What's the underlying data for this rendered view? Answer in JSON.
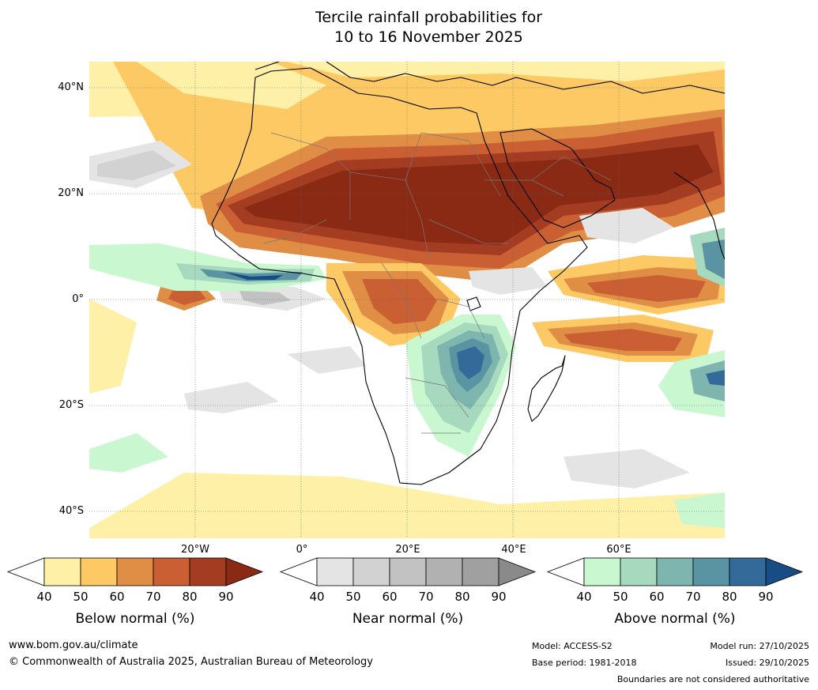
{
  "title": {
    "line1": "Tercile rainfall probabilities for",
    "line2": "10 to 16 November 2025"
  },
  "axes": {
    "lat_labels": [
      "40°N",
      "20°N",
      "0°",
      "20°S",
      "40°S"
    ],
    "lon_labels": [
      "20°W",
      "0°",
      "20°E",
      "40°E",
      "60°E"
    ]
  },
  "colorbars": [
    {
      "label": "Below normal (%)",
      "ticks": [
        "40",
        "50",
        "60",
        "70",
        "80",
        "90"
      ],
      "colors": [
        "#fff0a8",
        "#fdc965",
        "#e08e45",
        "#c95f32",
        "#a43c22"
      ],
      "low_color": "#ffffff",
      "high_color": "#8a2a15"
    },
    {
      "label": "Near normal (%)",
      "ticks": [
        "40",
        "50",
        "60",
        "70",
        "80",
        "90"
      ],
      "colors": [
        "#e4e4e4",
        "#d2d2d2",
        "#c2c2c2",
        "#b1b1b1",
        "#a0a0a0"
      ],
      "low_color": "#ffffff",
      "high_color": "#8a8a8a"
    },
    {
      "label": "Above normal (%)",
      "ticks": [
        "40",
        "50",
        "60",
        "70",
        "80",
        "90"
      ],
      "colors": [
        "#c9f7cf",
        "#a6d9be",
        "#7fb5af",
        "#5a93a1",
        "#346a99"
      ],
      "low_color": "#ffffff",
      "high_color": "#174d84"
    }
  ],
  "footer": {
    "url": "www.bom.gov.au/climate",
    "copyright": "© Commonwealth of Australia 2025, Australian Bureau of Meteorology",
    "model": "Model: ACCESS-S2",
    "base_period": "Base period: 1981-2018",
    "model_run": "Model run: 27/10/2025",
    "issued": "Issued: 29/10/2025",
    "disclaimer": "Boundaries are not considered authoritative"
  }
}
